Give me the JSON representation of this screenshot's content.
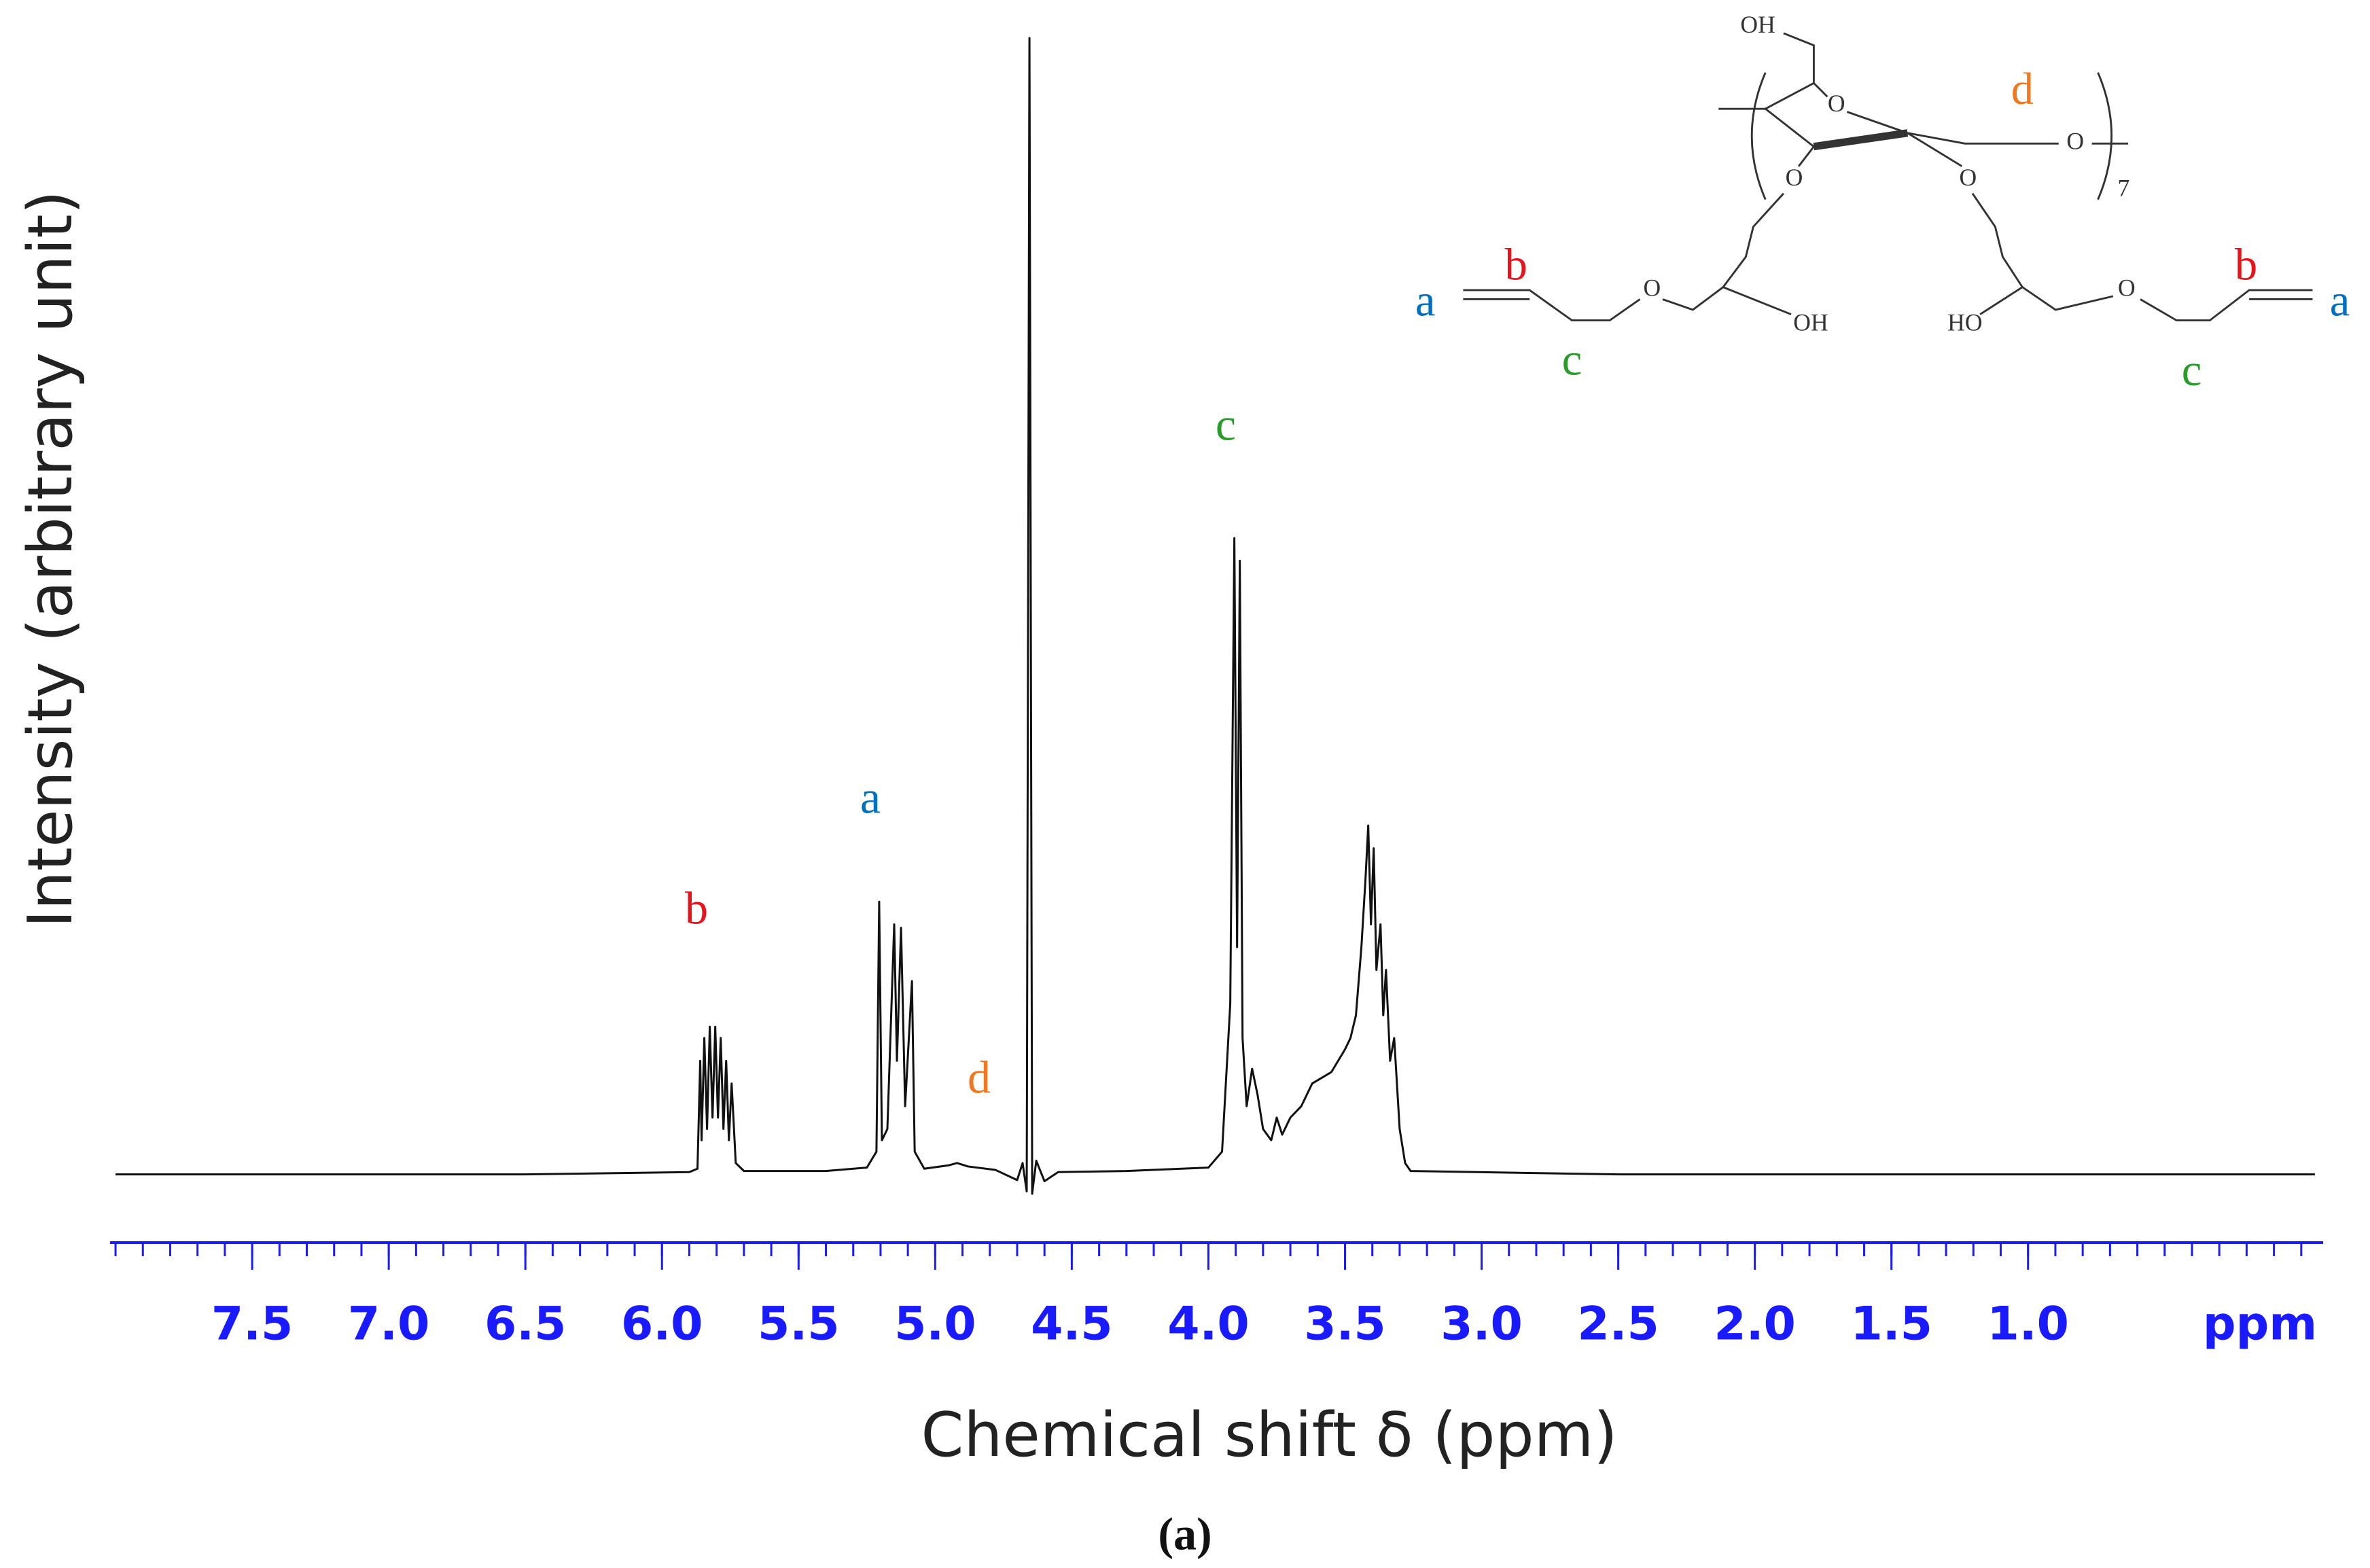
{
  "chart_data": {
    "type": "line",
    "x_label": "Chemical shift δ (ppm)",
    "y_label": "Intensity (arbitrary unit)",
    "x_unit": "ppm",
    "caption": "(a)",
    "color": "#111111",
    "axis_color": "#1a1aff",
    "xlim": [
      8.02,
      -0.08
    ],
    "ylim": [
      -6,
      100
    ],
    "xticks": [
      7.5,
      {
        "value": 7,
        "label": "7.0"
      },
      6.5,
      {
        "value": 6,
        "label": "6.0"
      },
      5.5,
      {
        "value": 5,
        "label": "5.0"
      },
      4.5,
      {
        "value": 4,
        "label": "4.0"
      },
      3.5,
      {
        "value": 3,
        "label": "3.0"
      },
      2.5,
      {
        "value": 2,
        "label": "2.0"
      },
      1.5,
      {
        "value": 1,
        "label": "1.0"
      }
    ],
    "xminorticks": [
      8.0,
      7.9,
      7.8,
      7.7,
      7.6,
      7.5,
      7.4,
      7.3,
      7.2,
      7.1,
      7.0,
      6.9,
      6.8,
      6.7,
      6.6,
      6.5,
      6.4,
      6.3,
      6.2,
      6.1,
      6.0,
      5.9,
      5.8,
      5.7,
      5.6,
      5.5,
      5.4,
      5.3,
      5.2,
      5.1,
      5.0,
      4.9,
      4.8,
      4.7,
      4.6,
      4.5,
      4.4,
      4.3,
      4.2,
      4.1,
      4.0,
      3.9,
      3.8,
      3.7,
      3.6,
      3.5,
      3.4,
      3.3,
      3.2,
      3.1,
      3.0,
      2.9,
      2.8,
      2.7,
      2.6,
      2.5,
      2.4,
      2.3,
      2.2,
      2.1,
      2.0,
      1.9,
      1.8,
      1.7,
      1.6,
      1.5,
      1.4,
      1.3,
      1.2,
      1.1,
      1.0,
      0.9,
      0.8,
      0.7,
      0.6,
      0.5,
      0.4,
      0.3,
      0.2,
      0.1,
      0.0
    ],
    "x": [
      8.0,
      6.5,
      5.9,
      5.87,
      5.86,
      5.855,
      5.845,
      5.835,
      5.825,
      5.815,
      5.805,
      5.795,
      5.785,
      5.775,
      5.765,
      5.755,
      5.745,
      5.73,
      5.7,
      5.4,
      5.25,
      5.215,
      5.205,
      5.195,
      5.175,
      5.15,
      5.14,
      5.125,
      5.11,
      5.085,
      5.075,
      5.04,
      4.95,
      4.92,
      4.88,
      4.78,
      4.7,
      4.68,
      4.665,
      4.655,
      4.645,
      4.63,
      4.6,
      4.55,
      4.3,
      4.0,
      3.95,
      3.92,
      3.905,
      3.895,
      3.885,
      3.875,
      3.86,
      3.84,
      3.82,
      3.8,
      3.77,
      3.75,
      3.73,
      3.7,
      3.66,
      3.62,
      3.55,
      3.5,
      3.48,
      3.46,
      3.44,
      3.425,
      3.415,
      3.405,
      3.395,
      3.385,
      3.37,
      3.36,
      3.35,
      3.335,
      3.32,
      3.3,
      3.28,
      3.26,
      2.5,
      1.0,
      -0.05
    ],
    "values": [
      0,
      0,
      0.2,
      0.5,
      10,
      3,
      12,
      4,
      13,
      5,
      13,
      5,
      12,
      4,
      10,
      3,
      8,
      1,
      0.3,
      0.3,
      0.6,
      2,
      24,
      3,
      4,
      22,
      10,
      21.7,
      6,
      17,
      2,
      0.5,
      0.8,
      1,
      0.7,
      0.4,
      -0.5,
      1,
      -1.5,
      100,
      -1.7,
      1.2,
      -0.6,
      0.2,
      0.3,
      0.6,
      2,
      15,
      56,
      20,
      54,
      12,
      6,
      9.3,
      7,
      4,
      3,
      5,
      3.5,
      5,
      6,
      8,
      9,
      11,
      12,
      14,
      20,
      26,
      30.7,
      22,
      28.7,
      18,
      22,
      14,
      18,
      10,
      12,
      4,
      1,
      0.3,
      0,
      0,
      0
    ],
    "annotations": [
      {
        "text": "b",
        "color": "#e8141c"
      },
      {
        "text": "a",
        "color": "#0070c0"
      },
      {
        "text": "d",
        "color": "#f07820"
      },
      {
        "text": "c",
        "color": "#2a9a2a"
      }
    ],
    "structure": [
      {
        "text": "OH",
        "color": "#333333"
      },
      {
        "text": "O",
        "color": "#333333"
      },
      {
        "text": "d",
        "color": "#f07820"
      },
      {
        "text": "O",
        "color": "#333333"
      },
      {
        "text": "7",
        "color": "#333333"
      },
      {
        "text": "O",
        "color": "#333333"
      },
      {
        "text": "O",
        "color": "#333333"
      },
      {
        "text": "a",
        "color": "#0070c0"
      },
      {
        "text": "b",
        "color": "#e8141c"
      },
      {
        "text": "O",
        "color": "#333333"
      },
      {
        "text": "OH",
        "color": "#333333"
      },
      {
        "text": "c",
        "color": "#2a9a2a"
      },
      {
        "text": "HO",
        "color": "#333333"
      },
      {
        "text": "O",
        "color": "#333333"
      },
      {
        "text": "b",
        "color": "#e8141c"
      },
      {
        "text": "a",
        "color": "#0070c0"
      },
      {
        "text": "c",
        "color": "#2a9a2a"
      }
    ]
  }
}
